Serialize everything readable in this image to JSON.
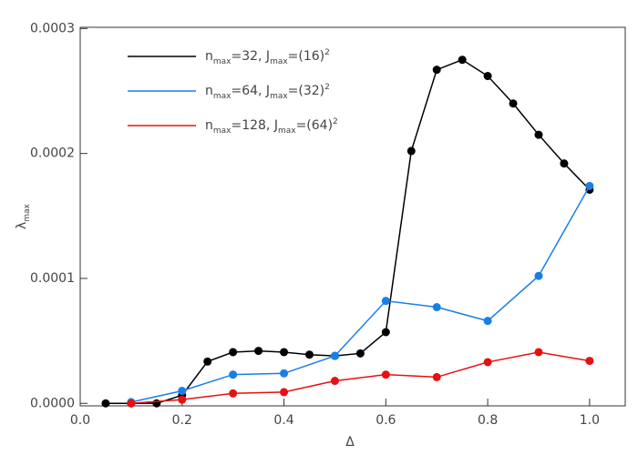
{
  "chart_data": {
    "type": "line",
    "x_label": "Δ",
    "y_label": "λmax",
    "xlim": [
      0,
      1.07
    ],
    "ylim": [
      -2e-06,
      0.000301
    ],
    "xticks": [
      {
        "value": 0,
        "label": "0.0"
      },
      0.2,
      0.4,
      0.6,
      0.8,
      {
        "value": 1,
        "label": "1.0"
      }
    ],
    "yticks": [
      {
        "value": 0,
        "label": "0.0000"
      },
      {
        "value": 0.0001,
        "label": "0.0001"
      },
      {
        "value": 0.0002,
        "label": "0.0002"
      },
      {
        "value": 0.0003,
        "label": "0.0003"
      }
    ],
    "legend": "upper left",
    "series": [
      {
        "name": "nmax=32, Jmax=(16)2",
        "color": "#000000",
        "x": [
          0.05,
          0.1,
          0.15,
          0.2,
          0.25,
          0.3,
          0.35,
          0.4,
          0.45,
          0.5,
          0.55,
          0.6,
          0.65,
          0.7,
          0.75,
          0.8,
          0.85,
          0.9,
          0.95,
          1.0
        ],
        "values": [
          0,
          0,
          0,
          6.5e-06,
          3.35e-05,
          4.1e-05,
          4.2e-05,
          4.1e-05,
          3.9e-05,
          3.8e-05,
          4e-05,
          5.7e-05,
          0.000202,
          0.000267,
          0.000275,
          0.000262,
          0.00024,
          0.000215,
          0.000192,
          0.000171
        ]
      },
      {
        "name": "nmax=64, Jmax=(32)2",
        "color": "#1a7ee8",
        "x": [
          0.1,
          0.2,
          0.3,
          0.4,
          0.5,
          0.6,
          0.7,
          0.8,
          0.9,
          1.0
        ],
        "values": [
          1e-06,
          1e-05,
          2.3e-05,
          2.4e-05,
          3.8e-05,
          8.2e-05,
          7.7e-05,
          6.6e-05,
          0.000102,
          0.000174
        ]
      },
      {
        "name": "nmax=128, Jmax=(64)2",
        "color": "#e81010",
        "x": [
          0.1,
          0.2,
          0.3,
          0.4,
          0.5,
          0.6,
          0.7,
          0.8,
          0.9,
          1.0
        ],
        "values": [
          0,
          3e-06,
          8e-06,
          9e-06,
          1.8e-05,
          2.3e-05,
          2.1e-05,
          3.3e-05,
          4.1e-05,
          3.4e-05
        ]
      }
    ]
  }
}
